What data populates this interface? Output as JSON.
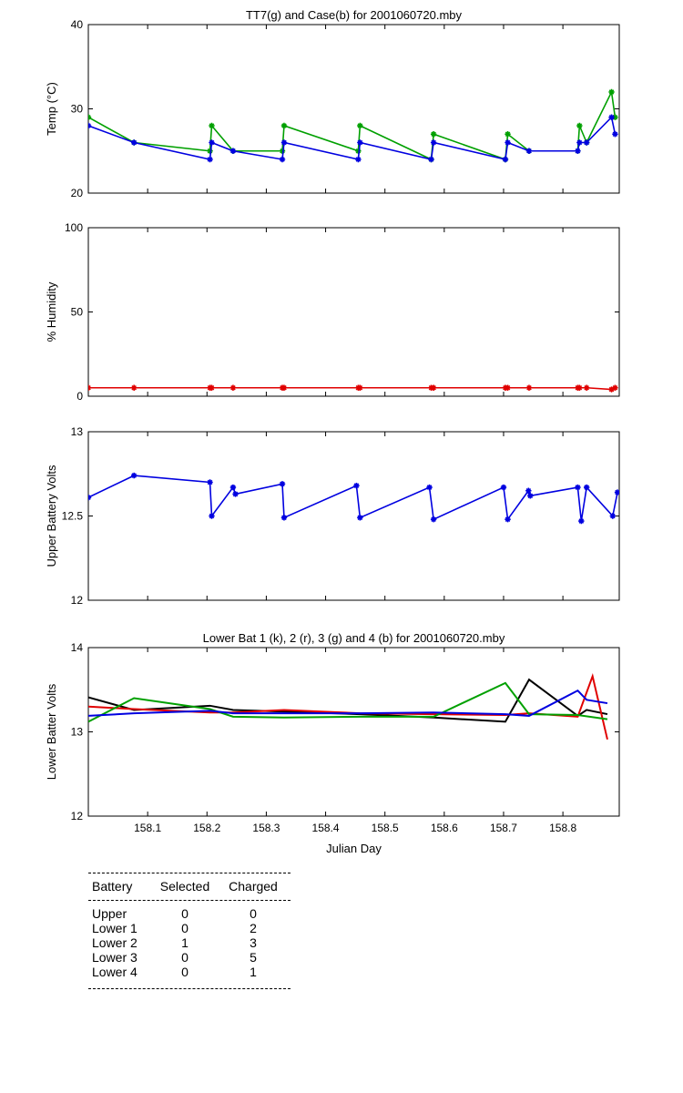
{
  "colors": {
    "black": "#000000",
    "red": "#e00000",
    "green": "#00a000",
    "blue": "#0000e0"
  },
  "chart_data": [
    {
      "type": "line",
      "title": "TT7(g) and Case(b) for 2001060720.mby",
      "ylabel": "Temp  (°C)",
      "xlabel": "",
      "xlim": [
        158.0,
        158.895
      ],
      "ylim": [
        20,
        40
      ],
      "yticks": [
        20,
        30,
        40
      ],
      "marker": "star",
      "series": [
        {
          "name": "TT7",
          "color": "#00a000",
          "x": [
            158.0,
            158.077,
            158.205,
            158.208,
            158.244,
            158.327,
            158.33,
            158.455,
            158.458,
            158.578,
            158.582,
            158.703,
            158.707,
            158.743,
            158.825,
            158.828,
            158.84,
            158.882,
            158.888
          ],
          "values": [
            29,
            26,
            25,
            28,
            25,
            25,
            28,
            25,
            28,
            24,
            27,
            24,
            27,
            25,
            25,
            28,
            26,
            32,
            29
          ]
        },
        {
          "name": "Case",
          "color": "#0000e0",
          "x": [
            158.0,
            158.077,
            158.205,
            158.208,
            158.244,
            158.327,
            158.33,
            158.455,
            158.458,
            158.578,
            158.582,
            158.703,
            158.707,
            158.743,
            158.825,
            158.828,
            158.84,
            158.882,
            158.888
          ],
          "values": [
            28,
            26,
            24,
            26,
            25,
            24,
            26,
            24,
            26,
            24,
            26,
            24,
            26,
            25,
            25,
            26,
            26,
            29,
            27
          ]
        }
      ]
    },
    {
      "type": "line",
      "title": "",
      "ylabel": "% Humidity",
      "xlabel": "",
      "xlim": [
        158.0,
        158.895
      ],
      "ylim": [
        0,
        100
      ],
      "yticks": [
        0,
        50,
        100
      ],
      "marker": "star",
      "series": [
        {
          "name": "Humidity",
          "color": "#e00000",
          "x": [
            158.0,
            158.077,
            158.205,
            158.208,
            158.244,
            158.327,
            158.33,
            158.455,
            158.458,
            158.578,
            158.582,
            158.703,
            158.707,
            158.743,
            158.825,
            158.828,
            158.84,
            158.882,
            158.888
          ],
          "values": [
            5,
            5,
            5,
            5,
            5,
            5,
            5,
            5,
            5,
            5,
            5,
            5,
            5,
            5,
            5,
            5,
            5,
            4,
            5
          ]
        }
      ]
    },
    {
      "type": "line",
      "title": "",
      "ylabel": "Upper Battery Volts",
      "xlabel": "",
      "xlim": [
        158.0,
        158.895
      ],
      "ylim": [
        12,
        13
      ],
      "yticks": [
        12,
        12.5,
        13
      ],
      "yticklabels": [
        "12",
        "12.5",
        "13"
      ],
      "marker": "star",
      "series": [
        {
          "name": "Upper",
          "color": "#0000e0",
          "x": [
            158.0,
            158.077,
            158.205,
            158.208,
            158.244,
            158.248,
            158.327,
            158.33,
            158.452,
            158.458,
            158.575,
            158.582,
            158.7,
            158.707,
            158.742,
            158.745,
            158.825,
            158.831,
            158.84,
            158.884,
            158.892
          ],
          "values": [
            12.61,
            12.74,
            12.7,
            12.5,
            12.67,
            12.63,
            12.69,
            12.49,
            12.68,
            12.49,
            12.67,
            12.48,
            12.67,
            12.48,
            12.65,
            12.62,
            12.67,
            12.47,
            12.67,
            12.5,
            12.64
          ]
        }
      ]
    },
    {
      "type": "line",
      "title": "Lower Bat 1 (k), 2 (r), 3 (g) and 4 (b) for 2001060720.mby",
      "ylabel": "Lower Batter Volts",
      "xlabel": "Julian Day",
      "xlim": [
        158.0,
        158.895
      ],
      "ylim": [
        12,
        14
      ],
      "yticks": [
        12,
        13,
        14
      ],
      "xticks": [
        158.1,
        158.2,
        158.3,
        158.4,
        158.5,
        158.6,
        158.7,
        158.8
      ],
      "xticklabels": [
        "158.1",
        "158.2",
        "158.3",
        "158.4",
        "158.5",
        "158.6",
        "158.7",
        "158.8"
      ],
      "marker": "none",
      "series": [
        {
          "name": "Lower 1",
          "color": "#000000",
          "x": [
            158.0,
            158.077,
            158.205,
            158.244,
            158.33,
            158.458,
            158.582,
            158.703,
            158.743,
            158.825,
            158.84,
            158.875
          ],
          "values": [
            13.41,
            13.26,
            13.31,
            13.26,
            13.24,
            13.21,
            13.17,
            13.12,
            13.62,
            13.19,
            13.26,
            13.21
          ]
        },
        {
          "name": "Lower 2",
          "color": "#e00000",
          "x": [
            158.0,
            158.077,
            158.205,
            158.244,
            158.33,
            158.458,
            158.582,
            158.703,
            158.743,
            158.825,
            158.85,
            158.875
          ],
          "values": [
            13.3,
            13.27,
            13.23,
            13.23,
            13.26,
            13.22,
            13.21,
            13.2,
            13.22,
            13.18,
            13.66,
            12.91
          ]
        },
        {
          "name": "Lower 3",
          "color": "#00a000",
          "x": [
            158.0,
            158.077,
            158.205,
            158.244,
            158.33,
            158.458,
            158.582,
            158.703,
            158.743,
            158.825,
            158.875
          ],
          "values": [
            13.12,
            13.4,
            13.27,
            13.18,
            13.17,
            13.18,
            13.18,
            13.58,
            13.21,
            13.2,
            13.15
          ]
        },
        {
          "name": "Lower 4",
          "color": "#0000e0",
          "x": [
            158.0,
            158.077,
            158.205,
            158.244,
            158.33,
            158.458,
            158.582,
            158.703,
            158.743,
            158.825,
            158.84,
            158.875
          ],
          "values": [
            13.19,
            13.22,
            13.25,
            13.22,
            13.22,
            13.22,
            13.23,
            13.21,
            13.19,
            13.49,
            13.38,
            13.34
          ]
        }
      ]
    }
  ],
  "table": {
    "headers": [
      "Battery",
      "Selected",
      "Charged"
    ],
    "rows": [
      [
        "Upper",
        "0",
        "0"
      ],
      [
        "Lower 1",
        "0",
        "2"
      ],
      [
        "Lower 2",
        "1",
        "3"
      ],
      [
        "Lower 3",
        "0",
        "5"
      ],
      [
        "Lower 4",
        "0",
        "1"
      ]
    ]
  }
}
